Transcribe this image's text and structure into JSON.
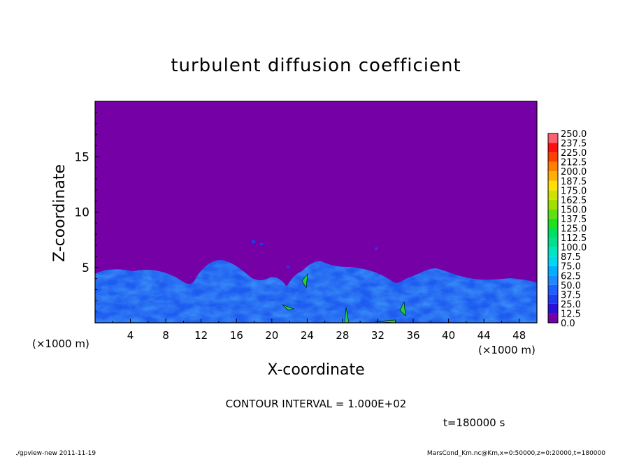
{
  "chart_data": {
    "type": "heatmap",
    "title": "turbulent diffusion coefficient",
    "xlabel": "X-coordinate",
    "ylabel": "Z-coordinate",
    "x_unit": "(×1000 m)",
    "y_unit": "(×1000 m)",
    "xlim": [
      0,
      50
    ],
    "ylim": [
      0,
      20
    ],
    "x_ticks": [
      "4",
      "8",
      "12",
      "16",
      "20",
      "24",
      "28",
      "32",
      "36",
      "40",
      "44",
      "48"
    ],
    "y_ticks": [
      "5",
      "10",
      "15"
    ],
    "contour_interval": "CONTOUR INTERVAL = 1.000E+02",
    "time_label": "t=180000 s",
    "colorbar": {
      "levels": [
        "0.0",
        "12.5",
        "25.0",
        "37.5",
        "50.0",
        "62.5",
        "75.0",
        "87.5",
        "100.0",
        "112.5",
        "125.0",
        "137.5",
        "150.0",
        "162.5",
        "175.0",
        "187.5",
        "200.0",
        "212.5",
        "225.0",
        "237.5",
        "250.0"
      ],
      "colors": [
        "#7400a6",
        "#2a10d8",
        "#1e3cf0",
        "#1e60ff",
        "#1e88ff",
        "#00b0ff",
        "#00d8f0",
        "#00e6c0",
        "#00e090",
        "#00e060",
        "#20e020",
        "#60e010",
        "#a0e000",
        "#d0e000",
        "#ffe000",
        "#ffb000",
        "#ff8000",
        "#ff4000",
        "#ff1010",
        "#ff6070"
      ]
    },
    "background_value": "0.0",
    "turbulent_layer_top_km": 5
  },
  "footer": {
    "left": "./gpview-new  2011-11-19",
    "right": "MarsCond_Km.nc@Km,x=0:50000,z=0:20000,t=180000"
  }
}
